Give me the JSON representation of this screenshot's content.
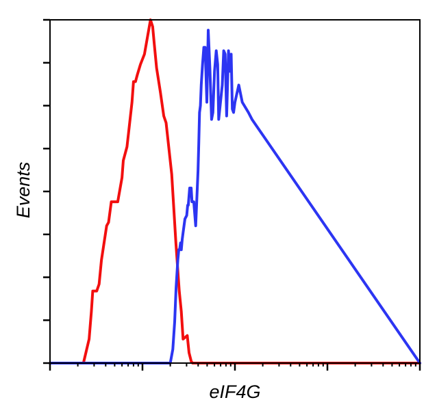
{
  "chart_data": {
    "type": "line",
    "title": "",
    "xlabel": "eIF4G",
    "ylabel": "Events",
    "x_scale": "log",
    "xlim": [
      1,
      10000
    ],
    "ylim": [
      0,
      100
    ],
    "y_ticks": [
      0,
      12.5,
      25,
      37.5,
      50,
      62.5,
      75,
      87.5,
      100
    ],
    "grid": false,
    "legend": "none",
    "series": [
      {
        "color": "#f20f0f",
        "x": [
          1,
          2.3,
          2.65,
          2.8,
          2.9,
          3.2,
          3.4,
          3.6,
          4.1,
          4.3,
          4.6,
          5.4,
          6.0,
          6.2,
          6.8,
          7.7,
          8.0,
          8.4,
          8.8,
          9.5,
          10.5,
          12.2,
          12.9,
          13.4,
          14.2,
          15.6,
          17.0,
          18.0,
          20.7,
          23.0,
          25.0,
          26.3,
          27.5,
          30.5,
          31.9,
          33.7,
          34.8,
          36.1,
          42.5,
          47.0,
          62.9,
          68.0,
          10000
        ],
        "y": [
          0,
          0,
          7,
          15,
          21,
          21,
          23,
          30,
          40,
          41,
          47,
          47,
          54,
          59,
          63,
          76,
          82,
          82,
          84,
          87,
          90,
          100,
          98,
          93,
          86,
          79,
          72,
          70,
          55,
          35,
          21,
          15,
          7,
          8,
          3,
          0.5,
          0,
          0,
          0,
          0,
          0,
          0,
          0
        ]
      },
      {
        "color": "#2c35f2",
        "x": [
          1,
          20.0,
          21.3,
          22.3,
          23.1,
          24.1,
          24.7,
          25.2,
          25.8,
          26.3,
          26.9,
          27.5,
          28.8,
          30.1,
          30.8,
          31.3,
          32.4,
          33.6,
          34.3,
          35.9,
          37.6,
          39.9,
          40.6,
          41.4,
          42.3,
          43.2,
          44.6,
          46.1,
          47.6,
          49.7,
          51.4,
          53.6,
          55.9,
          57.7,
          60.2,
          62.8,
          65.1,
          66.8,
          73.0,
          75.6,
          78.4,
          81.4,
          85.2,
          88.0,
          91.1,
          93.8,
          96.6,
          100.0,
          110.0,
          120.0,
          140.0,
          153.0,
          10000
        ],
        "y": [
          0,
          0,
          4,
          12,
          22,
          30,
          33,
          33,
          35,
          33,
          36,
          38,
          42,
          43,
          46,
          46,
          51,
          51,
          47,
          47,
          40,
          56,
          64,
          73,
          75,
          81,
          87,
          92,
          92,
          76,
          97,
          86,
          71,
          73,
          85,
          91,
          87,
          71,
          81,
          91,
          90,
          72,
          91,
          85,
          90,
          74,
          73,
          76,
          81,
          76,
          73,
          71,
          0
        ]
      }
    ]
  }
}
